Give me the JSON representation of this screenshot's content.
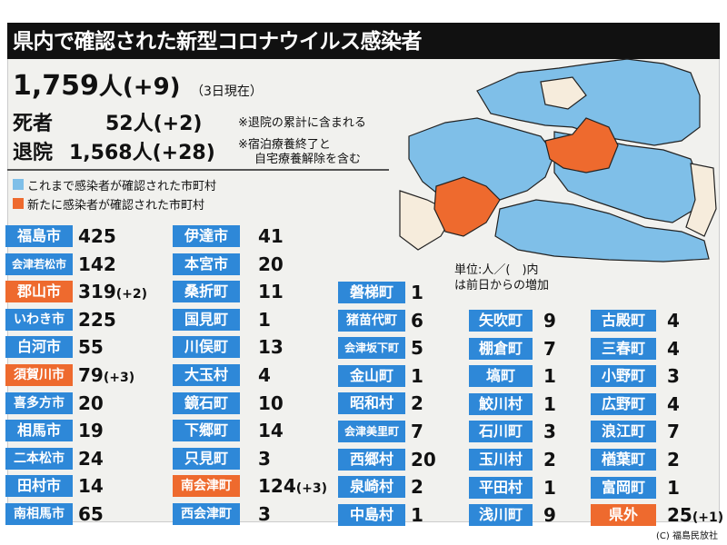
{
  "title": "県内で確認された新型コロナウイルス感染者",
  "summary": {
    "total": "1,759",
    "total_unit": "人(+9)",
    "date_note": "（3日現在）",
    "deaths_label": "死者",
    "deaths_value": "52人(+2)",
    "deaths_note": "※退院の累計に含まれる",
    "recovered_label": "退院",
    "recovered_value": "1,568人(+28)",
    "recovered_note_1": "※宿泊療養終了と",
    "recovered_note_2": "自宅療養解除を含む"
  },
  "legend": {
    "confirmed": "これまで感染者が確認された市町村",
    "new": "新たに感染者が確認された市町村",
    "colors": {
      "confirmed": "#7fbfe8",
      "new": "#ee6a2e",
      "none": "#f6ecdc"
    }
  },
  "unit_note_1": "単位:人／(　)内",
  "unit_note_2": "は前日からの増加",
  "colors": {
    "blue_label": "#2e88d8",
    "orange_label": "#ee6a2e",
    "title_bg": "#111111"
  },
  "columns": [
    [
      {
        "name": "福島市",
        "value": "425",
        "delta": "",
        "new": false
      },
      {
        "name": "会津若松市",
        "value": "142",
        "delta": "",
        "new": false
      },
      {
        "name": "郡山市",
        "value": "319",
        "delta": "(+2)",
        "new": true
      },
      {
        "name": "いわき市",
        "value": "225",
        "delta": "",
        "new": false
      },
      {
        "name": "白河市",
        "value": "55",
        "delta": "",
        "new": false
      },
      {
        "name": "須賀川市",
        "value": "79",
        "delta": "(+3)",
        "new": true
      },
      {
        "name": "喜多方市",
        "value": "20",
        "delta": "",
        "new": false
      },
      {
        "name": "相馬市",
        "value": "19",
        "delta": "",
        "new": false
      },
      {
        "name": "二本松市",
        "value": "24",
        "delta": "",
        "new": false
      },
      {
        "name": "田村市",
        "value": "14",
        "delta": "",
        "new": false
      },
      {
        "name": "南相馬市",
        "value": "65",
        "delta": "",
        "new": false
      }
    ],
    [
      {
        "name": "伊達市",
        "value": "41",
        "delta": "",
        "new": false
      },
      {
        "name": "本宮市",
        "value": "20",
        "delta": "",
        "new": false
      },
      {
        "name": "桑折町",
        "value": "11",
        "delta": "",
        "new": false
      },
      {
        "name": "国見町",
        "value": "1",
        "delta": "",
        "new": false
      },
      {
        "name": "川俣町",
        "value": "13",
        "delta": "",
        "new": false
      },
      {
        "name": "大玉村",
        "value": "4",
        "delta": "",
        "new": false
      },
      {
        "name": "鏡石町",
        "value": "10",
        "delta": "",
        "new": false
      },
      {
        "name": "下郷町",
        "value": "14",
        "delta": "",
        "new": false
      },
      {
        "name": "只見町",
        "value": "3",
        "delta": "",
        "new": false
      },
      {
        "name": "南会津町",
        "value": "124",
        "delta": "(+3)",
        "new": true
      },
      {
        "name": "西会津町",
        "value": "3",
        "delta": "",
        "new": false
      }
    ],
    [
      {
        "name": "磐梯町",
        "value": "1",
        "delta": "",
        "new": false
      },
      {
        "name": "猪苗代町",
        "value": "6",
        "delta": "",
        "new": false
      },
      {
        "name": "会津坂下町",
        "value": "5",
        "delta": "",
        "new": false
      },
      {
        "name": "金山町",
        "value": "1",
        "delta": "",
        "new": false
      },
      {
        "name": "昭和村",
        "value": "2",
        "delta": "",
        "new": false
      },
      {
        "name": "会津美里町",
        "value": "7",
        "delta": "",
        "new": false
      },
      {
        "name": "西郷村",
        "value": "20",
        "delta": "",
        "new": false
      },
      {
        "name": "泉崎村",
        "value": "2",
        "delta": "",
        "new": false
      },
      {
        "name": "中島村",
        "value": "1",
        "delta": "",
        "new": false
      }
    ],
    [
      {
        "name": "矢吹町",
        "value": "9",
        "delta": "",
        "new": false
      },
      {
        "name": "棚倉町",
        "value": "7",
        "delta": "",
        "new": false
      },
      {
        "name": "塙町",
        "value": "1",
        "delta": "",
        "new": false
      },
      {
        "name": "鮫川村",
        "value": "1",
        "delta": "",
        "new": false
      },
      {
        "name": "石川町",
        "value": "3",
        "delta": "",
        "new": false
      },
      {
        "name": "玉川村",
        "value": "2",
        "delta": "",
        "new": false
      },
      {
        "name": "平田村",
        "value": "1",
        "delta": "",
        "new": false
      },
      {
        "name": "浅川町",
        "value": "9",
        "delta": "",
        "new": false
      }
    ],
    [
      {
        "name": "古殿町",
        "value": "4",
        "delta": "",
        "new": false
      },
      {
        "name": "三春町",
        "value": "4",
        "delta": "",
        "new": false
      },
      {
        "name": "小野町",
        "value": "3",
        "delta": "",
        "new": false
      },
      {
        "name": "広野町",
        "value": "4",
        "delta": "",
        "new": false
      },
      {
        "name": "浪江町",
        "value": "7",
        "delta": "",
        "new": false
      },
      {
        "name": "楢葉町",
        "value": "2",
        "delta": "",
        "new": false
      },
      {
        "name": "富岡町",
        "value": "1",
        "delta": "",
        "new": false
      },
      {
        "name": "県外",
        "value": "25",
        "delta": "(+1)",
        "new": true
      }
    ]
  ],
  "copyright": "(C) 福島民放社"
}
